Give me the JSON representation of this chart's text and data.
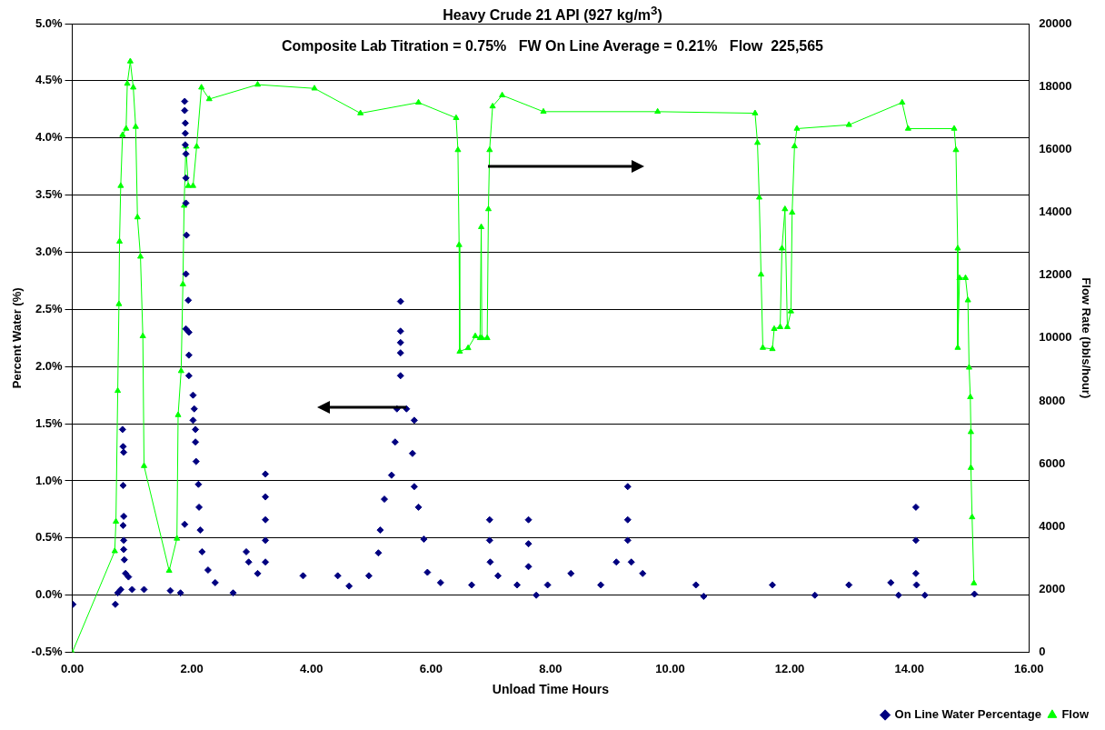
{
  "chart_data": {
    "type": "scatter",
    "title": "Heavy Crude 21 API (927 kg/m$^{3}$)",
    "subtitle": "Composite Lab Titration = 0.75%   FW On Line Average = 0.21%   Flow  225,565",
    "xlabel": "Unload Time Hours",
    "ylabel": "Percent Water (%)",
    "y2label": "Flow Rate (bbls/hour)",
    "xlim": [
      0,
      16
    ],
    "xticks": [
      {
        "value": 0,
        "label": "0.00"
      },
      {
        "value": 2,
        "label": "2.00"
      },
      {
        "value": 4,
        "label": "4.00"
      },
      {
        "value": 6,
        "label": "6.00"
      },
      {
        "value": 8,
        "label": "8.00"
      },
      {
        "value": 10,
        "label": "10.00"
      },
      {
        "value": 12,
        "label": "12.00"
      },
      {
        "value": 14,
        "label": "14.00"
      },
      {
        "value": 16,
        "label": "16.00"
      }
    ],
    "ylim": [
      -0.5,
      5
    ],
    "yticks": [
      {
        "value": -0.5,
        "label": "-0.5%"
      },
      {
        "value": 0,
        "label": "0.0%"
      },
      {
        "value": 0.5,
        "label": "0.5%"
      },
      {
        "value": 1,
        "label": "1.0%"
      },
      {
        "value": 1.5,
        "label": "1.5%"
      },
      {
        "value": 2,
        "label": "2.0%"
      },
      {
        "value": 2.5,
        "label": "2.5%"
      },
      {
        "value": 3,
        "label": "3.0%"
      },
      {
        "value": 3.5,
        "label": "3.5%"
      },
      {
        "value": 4,
        "label": "4.0%"
      },
      {
        "value": 4.5,
        "label": "4.5%"
      },
      {
        "value": 5,
        "label": "5.0%"
      }
    ],
    "y2lim": [
      0,
      20000
    ],
    "y2ticks": [
      0,
      2000,
      4000,
      6000,
      8000,
      10000,
      12000,
      14000,
      16000,
      18000,
      20000
    ],
    "grid": "y",
    "legend": "bottom right",
    "series": [
      {
        "name": "On Line Water Percentage",
        "type": "scatter",
        "marker": "diamond",
        "color": "#000080",
        "x": [
          0.01,
          0.72,
          0.76,
          0.81,
          0.84,
          0.85,
          0.86,
          0.85,
          0.86,
          0.85,
          0.86,
          0.86,
          0.87,
          0.89,
          0.94,
          1.0,
          1.2,
          1.64,
          1.81,
          1.88,
          1.88,
          1.88,
          1.89,
          1.89,
          1.89,
          1.9,
          1.9,
          1.9,
          1.91,
          1.9,
          1.94,
          1.9,
          1.95,
          1.95,
          1.95,
          2.02,
          2.04,
          2.02,
          2.06,
          2.06,
          2.07,
          2.11,
          2.12,
          2.14,
          2.17,
          2.27,
          2.39,
          2.69,
          2.91,
          2.95,
          3.1,
          3.23,
          3.23,
          3.23,
          3.23,
          3.23,
          3.86,
          4.44,
          4.63,
          4.96,
          5.12,
          5.15,
          5.22,
          5.34,
          5.4,
          5.43,
          5.49,
          5.49,
          5.49,
          5.49,
          5.49,
          5.59,
          5.72,
          5.69,
          5.72,
          5.79,
          5.88,
          5.94,
          6.16,
          6.68,
          6.98,
          6.98,
          6.99,
          7.12,
          7.44,
          7.63,
          7.63,
          7.63,
          7.76,
          7.95,
          8.34,
          8.84,
          9.1,
          9.29,
          9.29,
          9.29,
          9.35,
          9.54,
          10.43,
          10.56,
          11.71,
          12.42,
          12.99,
          13.69,
          13.82,
          14.11,
          14.11,
          14.11,
          14.12,
          14.26,
          15.09
        ],
        "values": [
          -0.08,
          -0.08,
          0.02,
          0.05,
          1.45,
          1.3,
          1.25,
          0.96,
          0.69,
          0.61,
          0.48,
          0.4,
          0.31,
          0.19,
          0.16,
          0.05,
          0.05,
          0.04,
          0.02,
          0.62,
          4.32,
          4.24,
          4.13,
          4.04,
          3.94,
          3.86,
          3.65,
          3.43,
          3.15,
          2.81,
          2.58,
          2.33,
          2.3,
          2.1,
          1.92,
          1.75,
          1.63,
          1.53,
          1.45,
          1.34,
          1.17,
          0.97,
          0.77,
          0.57,
          0.38,
          0.22,
          0.11,
          0.02,
          0.38,
          0.29,
          0.19,
          1.06,
          0.86,
          0.66,
          0.48,
          0.29,
          0.17,
          0.17,
          0.08,
          0.17,
          0.37,
          0.57,
          0.84,
          1.05,
          1.34,
          1.63,
          1.92,
          2.12,
          2.21,
          2.31,
          2.57,
          1.63,
          1.53,
          1.24,
          0.95,
          0.77,
          0.49,
          0.2,
          0.11,
          0.09,
          0.66,
          0.48,
          0.29,
          0.17,
          0.09,
          0.66,
          0.45,
          0.25,
          0.0,
          0.09,
          0.19,
          0.09,
          0.29,
          0.95,
          0.66,
          0.48,
          0.29,
          0.19,
          0.09,
          -0.01,
          0.09,
          0.0,
          0.09,
          0.11,
          0.0,
          0.77,
          0.48,
          0.19,
          0.09,
          0.0,
          0.01
        ]
      },
      {
        "name": "Flow",
        "type": "line",
        "marker": "triangle",
        "axis": "y2",
        "color": "#00ff00",
        "x": [
          0,
          0.71,
          0.73,
          0.76,
          0.78,
          0.79,
          0.81,
          0.84,
          0.9,
          0.92,
          0.97,
          1.02,
          1.06,
          1.09,
          1.14,
          1.18,
          1.2,
          1.62,
          1.75,
          1.77,
          1.82,
          1.85,
          1.87,
          1.9,
          1.94,
          2.02,
          2.08,
          2.16,
          2.29,
          3.1,
          4.05,
          4.82,
          5.79,
          6.42,
          6.45,
          6.47,
          6.48,
          6.62,
          6.74,
          6.82,
          6.84,
          6.85,
          6.94,
          6.96,
          6.98,
          7.03,
          7.19,
          7.88,
          9.79,
          11.42,
          11.46,
          11.49,
          11.52,
          11.55,
          11.71,
          11.74,
          11.84,
          11.87,
          11.92,
          11.96,
          12.02,
          12.04,
          12.08,
          12.12,
          12.99,
          13.88,
          13.98,
          14.75,
          14.78,
          14.81,
          14.81,
          14.84,
          14.94,
          14.98,
          15.0,
          15.02,
          15.03,
          15.03,
          15.05,
          15.08
        ],
        "values": [
          0,
          3220,
          4160,
          8320,
          11080,
          13070,
          14840,
          16460,
          16660,
          18090,
          18800,
          17970,
          16720,
          13840,
          12590,
          10060,
          5930,
          2600,
          3620,
          7550,
          8950,
          11710,
          14210,
          16090,
          14840,
          14840,
          16090,
          17970,
          17600,
          18060,
          17940,
          17150,
          17490,
          17000,
          15980,
          12960,
          9570,
          9680,
          10060,
          10000,
          13530,
          10000,
          10000,
          14100,
          15980,
          17370,
          17720,
          17200,
          17200,
          17150,
          16210,
          14470,
          12020,
          9690,
          9650,
          10290,
          10350,
          12850,
          14100,
          10350,
          10850,
          13990,
          16100,
          16660,
          16780,
          17490,
          16660,
          16660,
          15980,
          12850,
          9690,
          11910,
          11910,
          11200,
          9060,
          8120,
          7010,
          5870,
          4300,
          2200
        ]
      }
    ]
  }
}
